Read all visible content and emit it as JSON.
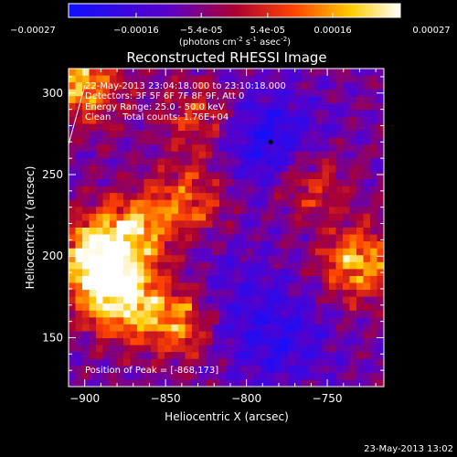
{
  "chart_data": {
    "type": "heatmap",
    "title": "Reconstructed RHESSI Image",
    "xlabel": "Heliocentric X (arcsec)",
    "ylabel": "Heliocentric Y (arcsec)",
    "xlim": [
      -910,
      -715
    ],
    "ylim": [
      120,
      315
    ],
    "x_ticks": [
      -900,
      -850,
      -800,
      -750
    ],
    "y_ticks": [
      150,
      200,
      250,
      300
    ],
    "colorbar": {
      "range": [
        -0.00027,
        0.00027
      ],
      "tick_values": [
        -0.00027,
        -0.00016,
        -5.4e-05,
        5.4e-05,
        0.00016,
        0.00027
      ],
      "tick_labels": [
        "-0.00027",
        "-0.00016",
        "-5.4e-05",
        "5.4e-05",
        "0.00016",
        "0.00027"
      ],
      "units_main": "(photons cm",
      "units_sup1": "-2",
      "units_mid": " s",
      "units_sup2": "-1",
      "units_mid2": " asec",
      "units_sup3": "-2",
      "units_end": ")",
      "colors": [
        "#1010ff",
        "#5a00c8",
        "#aa0033",
        "#ff4400",
        "#ffcc00",
        "#ffffff"
      ]
    },
    "annotations": {
      "time_range": "22-May-2013 23:04:18.000 to 23:10:18.000",
      "detectors": "Detectors: 3F 5F 6F 7F 8F 9F, Att 0",
      "energy_range": "Energy Range: 25.0 - 50.0 keV",
      "clean": "Clean    Total counts: 1.76E+04",
      "peak": "Position of Peak = [-868,173]"
    },
    "bright_regions": [
      {
        "x": -880,
        "y": 175,
        "level": 1.0
      },
      {
        "x": -895,
        "y": 200,
        "level": 0.9
      },
      {
        "x": -870,
        "y": 215,
        "level": 0.7
      },
      {
        "x": -900,
        "y": 305,
        "level": 0.7
      },
      {
        "x": -845,
        "y": 160,
        "level": 0.65
      },
      {
        "x": -730,
        "y": 195,
        "level": 0.75
      },
      {
        "x": -835,
        "y": 235,
        "level": 0.5
      },
      {
        "x": -760,
        "y": 245,
        "level": 0.45
      },
      {
        "x": -830,
        "y": 285,
        "level": 0.4
      }
    ],
    "dark_regions": [
      {
        "x": -785,
        "y": 270,
        "level": -0.8
      },
      {
        "x": -780,
        "y": 150,
        "level": -0.6
      },
      {
        "x": -810,
        "y": 180,
        "level": -0.3
      }
    ]
  },
  "footer": {
    "timestamp": "23-May-2013 13:02"
  }
}
